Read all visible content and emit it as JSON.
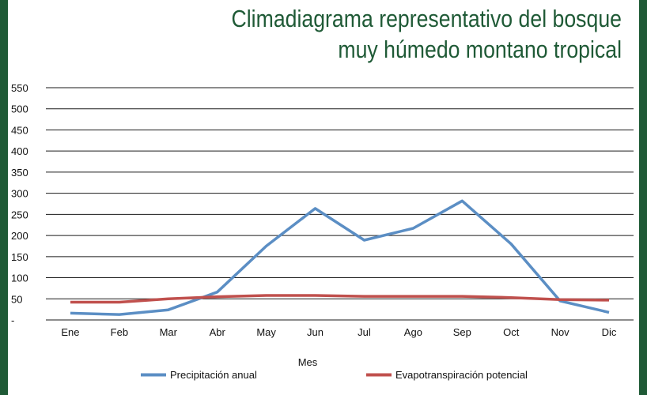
{
  "chart_data": {
    "type": "line",
    "title_lines": [
      "Climadiagrama representativo del bosque",
      "muy húmedo montano tropical"
    ],
    "xlabel": "Mes",
    "ylabel": "",
    "categories": [
      "Ene",
      "Feb",
      "Mar",
      "Abr",
      "May",
      "Jun",
      "Jul",
      "Ago",
      "Sep",
      "Oct",
      "Nov",
      "Dic"
    ],
    "ylim": [
      0,
      550
    ],
    "yticks": [
      "-",
      "50",
      "100",
      "150",
      "200",
      "250",
      "300",
      "350",
      "400",
      "450",
      "500",
      "550"
    ],
    "grid": true,
    "legend_position": "bottom",
    "series": [
      {
        "name": "Precipitación anual",
        "color": "#5b8ec4",
        "values": [
          16,
          13,
          24,
          66,
          175,
          264,
          189,
          217,
          282,
          180,
          45,
          18
        ]
      },
      {
        "name": "Evapotranspiración potencial",
        "color": "#c0504d",
        "values": [
          42,
          42,
          50,
          55,
          58,
          58,
          56,
          56,
          56,
          53,
          48,
          47
        ]
      }
    ]
  }
}
